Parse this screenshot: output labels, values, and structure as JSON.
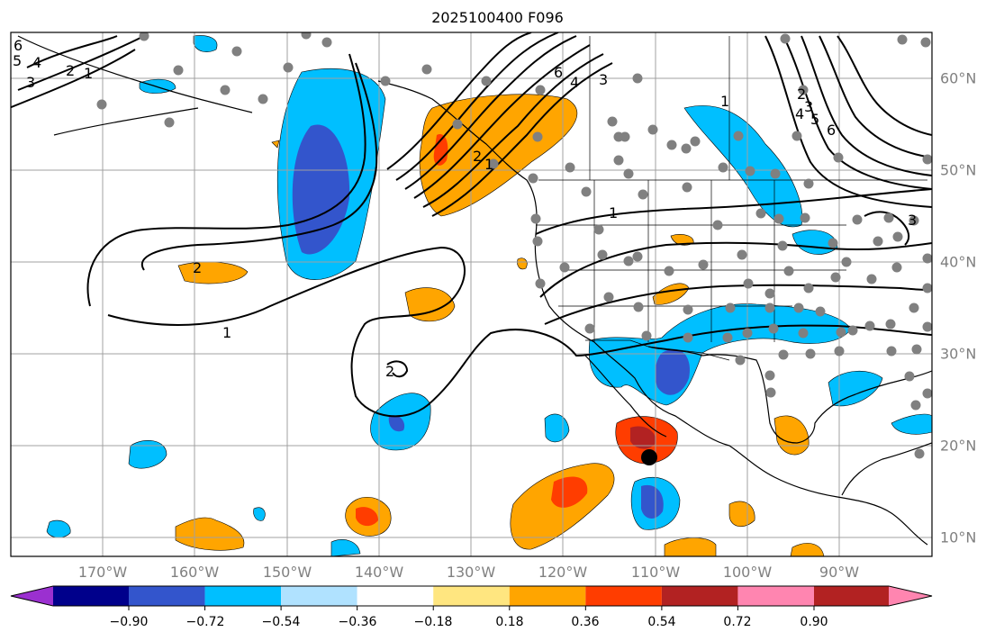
{
  "title": "2025100400 F096",
  "lon_labels": [
    "170°W",
    "160°W",
    "150°W",
    "140°W",
    "130°W",
    "120°W",
    "110°W",
    "100°W",
    "90°W"
  ],
  "lat_labels": [
    "60°N",
    "50°N",
    "40°N",
    "30°N",
    "20°N",
    "10°N"
  ],
  "contour_labels": [
    "6",
    "5",
    "4",
    "3",
    "2",
    "1",
    "2",
    "1",
    "2",
    "2",
    "1",
    "1",
    "6",
    "4",
    "3",
    "1",
    "2",
    "3",
    "4",
    "5",
    "6",
    "3"
  ],
  "colorbar": {
    "ticks": [
      "−0.90",
      "−0.72",
      "−0.54",
      "−0.36",
      "−0.18",
      "0.18",
      "0.36",
      "0.54",
      "0.72",
      "0.90"
    ],
    "colors": [
      "#9b30d0",
      "#00008b",
      "#3355cc",
      "#00bfff",
      "#b0e2ff",
      "#ffffff",
      "#ffe680",
      "#ffa500",
      "#ff3d00",
      "#b22222",
      "#ff85b0"
    ]
  },
  "colors": {
    "axis_label": "#808080",
    "grid": "#a0a0a0",
    "dots": "#808080"
  }
}
